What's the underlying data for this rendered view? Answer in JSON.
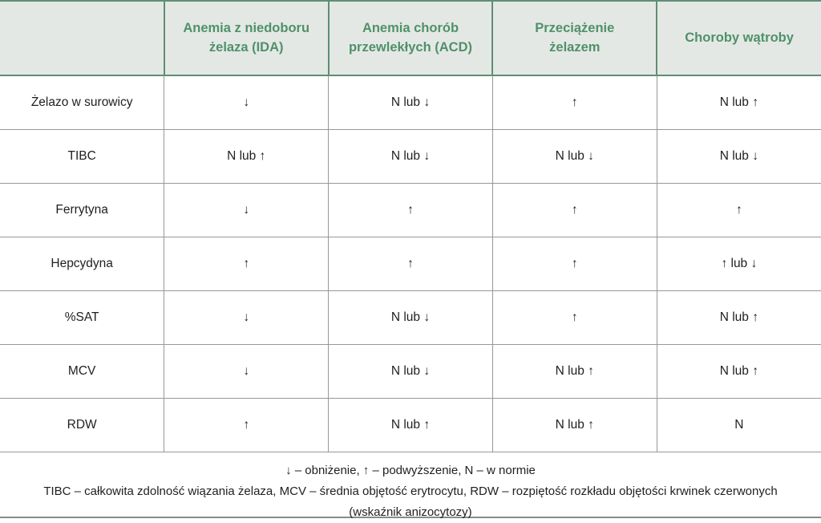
{
  "table": {
    "columns": [
      "",
      "Anemia z niedoboru żelaza (IDA)",
      "Anemia chorób przewlekłych (ACD)",
      "Przeciążenie żelazem",
      "Choroby wątroby"
    ],
    "rows": [
      {
        "label": "Żelazo w surowicy",
        "values": [
          "↓",
          "N lub ↓",
          "↑",
          "N lub ↑"
        ]
      },
      {
        "label": "TIBC",
        "values": [
          "N lub ↑",
          "N lub ↓",
          "N lub ↓",
          "N lub ↓"
        ]
      },
      {
        "label": "Ferrytyna",
        "values": [
          "↓",
          "↑",
          "↑",
          "↑"
        ]
      },
      {
        "label": "Hepcydyna",
        "values": [
          "↑",
          "↑",
          "↑",
          "↑ lub ↓"
        ]
      },
      {
        "label": "%SAT",
        "values": [
          "↓",
          "N lub ↓",
          "↑",
          "N lub ↑"
        ]
      },
      {
        "label": "MCV",
        "values": [
          "↓",
          "N lub ↓",
          "N lub ↑",
          "N lub ↑"
        ]
      },
      {
        "label": "RDW",
        "values": [
          "↑",
          "N lub ↑",
          "N lub ↑",
          "N"
        ]
      }
    ],
    "footnotes": [
      "↓ – obniżenie, ↑ – podwyższenie, N – w normie",
      "TIBC – całkowita zdolność wiązania żelaza, MCV – średnia objętość erytrocytu, RDW – rozpiętość rozkładu objętości krwinek czerwonych",
      "(wskaźnik anizocytozy)"
    ]
  },
  "colors": {
    "header_bg": "#e4e8e5",
    "header_text": "#4f9169",
    "header_border": "#5e8f74",
    "body_border": "#989898",
    "body_text": "#1f1f1f"
  },
  "legend": {
    "down_arrow": "obniżenie",
    "up_arrow": "podwyższenie",
    "N": "w normie"
  }
}
